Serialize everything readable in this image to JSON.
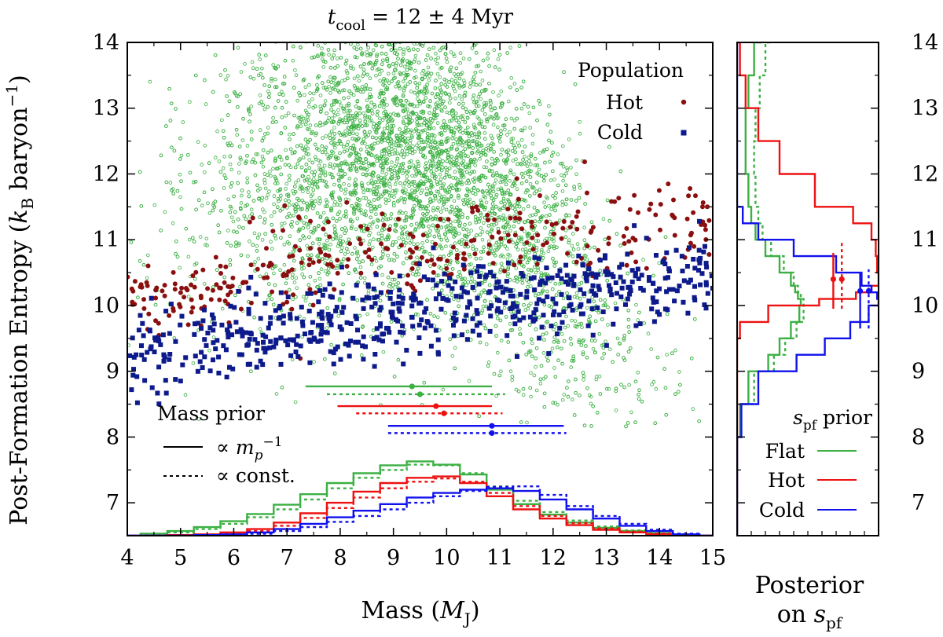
{
  "chart_data": [
    {
      "panel": "main",
      "type": "scatter",
      "title": "t_cool = 12 ± 4 Myr",
      "title_main": "t",
      "title_sub": "cool",
      "title_rest": " = 12 ± 4 Myr",
      "xlabel_pre": "Mass (",
      "xlabel_sym": "M",
      "xlabel_sub": "J",
      "xlabel_post": ")",
      "ylabel_pre": "Post-Formation Entropy (",
      "ylabel_sym": "k",
      "ylabel_sub": "B",
      "ylabel_post": " baryon",
      "ylabel_sup": "−1",
      "ylabel_close": ")",
      "xlim": [
        4,
        15
      ],
      "ylim": [
        6.5,
        14
      ],
      "xticks": [
        "4",
        "5",
        "6",
        "7",
        "8",
        "9",
        "10",
        "11",
        "12",
        "13",
        "14",
        "15"
      ],
      "yticks": [
        "7",
        "8",
        "9",
        "10",
        "11",
        "12",
        "13",
        "14"
      ],
      "legend_population": {
        "title": "Population",
        "entries": [
          {
            "label": "Hot",
            "color": "#8b0f0f",
            "marker": "circle"
          },
          {
            "label": "Cold",
            "color": "#0d1a8c",
            "marker": "square"
          }
        ]
      },
      "legend_mass_prior": {
        "title": "Mass prior",
        "entries": [
          {
            "label_pre": "∝ m",
            "label_sub": "p",
            "label_sup": "−1",
            "style": "solid"
          },
          {
            "label": "∝ const.",
            "style": "dotted"
          }
        ]
      },
      "series": [
        {
          "name": "Flat samples",
          "color": "#3cb043",
          "marker": "open-circle",
          "n_points": 6500,
          "trend": [
            [
              4,
              11.4
            ],
            [
              6,
              11.7
            ],
            [
              8,
              12.2
            ],
            [
              9.5,
              12.4
            ],
            [
              11,
              11.6
            ],
            [
              12,
              10.6
            ],
            [
              13,
              9.7
            ],
            [
              14,
              9.1
            ],
            [
              15,
              8.6
            ]
          ]
        },
        {
          "name": "Hot",
          "color": "#8b0f0f",
          "marker": "circle",
          "n_points": 320,
          "trend": [
            [
              4,
              10.0
            ],
            [
              6,
              10.35
            ],
            [
              8,
              10.65
            ],
            [
              10,
              10.85
            ],
            [
              12,
              11.0
            ],
            [
              15,
              11.2
            ]
          ]
        },
        {
          "name": "Cold",
          "color": "#0d1a8c",
          "marker": "square",
          "n_points": 600,
          "trend": [
            [
              4,
              9.2
            ],
            [
              6,
              9.55
            ],
            [
              8,
              9.75
            ],
            [
              10,
              10.0
            ],
            [
              12,
              10.15
            ],
            [
              15,
              10.4
            ]
          ]
        }
      ],
      "mass_errorbars": [
        {
          "name": "Flat",
          "color": "#3cb043",
          "prior": "m_p^-1",
          "center": 9.35,
          "low": 7.35,
          "high": 10.85,
          "y": 8.77
        },
        {
          "name": "Flat",
          "color": "#3cb043",
          "prior": "const",
          "center": 9.5,
          "low": 7.75,
          "high": 11.1,
          "y": 8.65
        },
        {
          "name": "Hot",
          "color": "#ee1111",
          "prior": "m_p^-1",
          "center": 9.8,
          "low": 7.95,
          "high": 10.85,
          "y": 8.47
        },
        {
          "name": "Hot",
          "color": "#ee1111",
          "prior": "const",
          "center": 9.95,
          "low": 8.3,
          "high": 11.05,
          "y": 8.36
        },
        {
          "name": "Cold",
          "color": "#1111ee",
          "prior": "m_p^-1",
          "center": 10.85,
          "low": 8.9,
          "high": 12.2,
          "y": 8.17
        },
        {
          "name": "Cold",
          "color": "#1111ee",
          "prior": "const",
          "center": 10.85,
          "low": 8.9,
          "high": 12.25,
          "y": 8.06
        }
      ],
      "mass_posteriors": {
        "x": [
          4,
          4.5,
          5,
          5.5,
          6,
          6.5,
          7,
          7.5,
          8,
          8.5,
          9,
          9.5,
          10,
          10.5,
          11,
          11.5,
          12,
          12.5,
          13,
          13.5,
          14,
          14.5,
          15
        ],
        "series": [
          {
            "name": "Flat m^-1",
            "color": "#3cb043",
            "style": "solid",
            "values": [
              6.5,
              6.53,
              6.57,
              6.63,
              6.72,
              6.83,
              6.97,
              7.13,
              7.3,
              7.45,
              7.57,
              7.63,
              7.58,
              7.43,
              7.2,
              6.98,
              6.82,
              6.7,
              6.62,
              6.57,
              6.54,
              6.52,
              6.5
            ]
          },
          {
            "name": "Flat const",
            "color": "#3cb043",
            "style": "dotted",
            "values": [
              6.5,
              6.52,
              6.55,
              6.6,
              6.68,
              6.78,
              6.9,
              7.05,
              7.22,
              7.38,
              7.5,
              7.58,
              7.57,
              7.45,
              7.25,
              7.03,
              6.86,
              6.73,
              6.64,
              6.58,
              6.54,
              6.52,
              6.5
            ]
          },
          {
            "name": "Hot m^-1",
            "color": "#ee1111",
            "style": "solid",
            "values": [
              6.5,
              6.5,
              6.51,
              6.52,
              6.55,
              6.6,
              6.7,
              6.84,
              7.0,
              7.17,
              7.3,
              7.38,
              7.4,
              7.3,
              7.1,
              6.9,
              6.76,
              6.66,
              6.59,
              6.55,
              6.52,
              6.51,
              6.5
            ]
          },
          {
            "name": "Hot const",
            "color": "#ee1111",
            "style": "dotted",
            "values": [
              6.5,
              6.5,
              6.5,
              6.51,
              6.53,
              6.57,
              6.65,
              6.77,
              6.92,
              7.08,
              7.22,
              7.32,
              7.37,
              7.32,
              7.15,
              6.95,
              6.8,
              6.69,
              6.61,
              6.56,
              6.53,
              6.51,
              6.5
            ]
          },
          {
            "name": "Cold m^-1",
            "color": "#1111ee",
            "style": "solid",
            "values": [
              6.5,
              6.5,
              6.5,
              6.51,
              6.52,
              6.55,
              6.6,
              6.68,
              6.78,
              6.88,
              6.98,
              7.08,
              7.15,
              7.2,
              7.22,
              7.18,
              7.05,
              6.9,
              6.76,
              6.65,
              6.57,
              6.52,
              6.5
            ]
          },
          {
            "name": "Cold const",
            "color": "#1111ee",
            "style": "dotted",
            "values": [
              6.5,
              6.5,
              6.5,
              6.5,
              6.51,
              6.53,
              6.57,
              6.63,
              6.71,
              6.8,
              6.9,
              7.0,
              7.1,
              7.18,
              7.24,
              7.25,
              7.12,
              6.95,
              6.8,
              6.68,
              6.59,
              6.53,
              6.5
            ]
          }
        ]
      }
    },
    {
      "panel": "side",
      "type": "line",
      "xlabel_line1": "Posterior",
      "xlabel_line2_pre": "on ",
      "xlabel_sym": "s",
      "xlabel_sub": "pf",
      "ylim": [
        6.5,
        14
      ],
      "yticks": [
        "7",
        "8",
        "9",
        "10",
        "11",
        "12",
        "13",
        "14"
      ],
      "legend": {
        "title_sym": "s",
        "title_sub": "pf",
        "title_rest": " prior",
        "entries": [
          {
            "label": "Flat",
            "color": "#3cb043"
          },
          {
            "label": "Hot",
            "color": "#ee1111"
          },
          {
            "label": "Cold",
            "color": "#1111ee"
          }
        ]
      },
      "entropy_posteriors": {
        "y": [
          6.5,
          7,
          7.5,
          8,
          8.5,
          9,
          9.25,
          9.5,
          9.75,
          10,
          10.1,
          10.2,
          10.3,
          10.5,
          10.75,
          11,
          11.25,
          11.5,
          12,
          12.5,
          13,
          13.5,
          14
        ],
        "series": [
          {
            "name": "Flat",
            "color": "#3cb043",
            "style": "solid",
            "values": [
              0,
              0,
              0,
              0.02,
              0.08,
              0.22,
              0.3,
              0.38,
              0.44,
              0.45,
              0.43,
              0.41,
              0.38,
              0.3,
              0.2,
              0.13,
              0.1,
              0.08,
              0.06,
              0.06,
              0.08,
              0.12,
              0.17
            ]
          },
          {
            "name": "Flat const",
            "color": "#3cb043",
            "style": "dotted",
            "values": [
              0,
              0,
              0,
              0.03,
              0.12,
              0.26,
              0.34,
              0.42,
              0.47,
              0.47,
              0.45,
              0.43,
              0.4,
              0.33,
              0.24,
              0.18,
              0.15,
              0.13,
              0.12,
              0.13,
              0.16,
              0.2,
              0.25
            ]
          },
          {
            "name": "Hot",
            "color": "#ee1111",
            "style": "solid",
            "values": [
              0,
              0,
              0,
              0,
              0,
              0,
              0,
              0.02,
              0.22,
              0.58,
              0.84,
              0.95,
              1.0,
              0.99,
              0.98,
              0.95,
              0.82,
              0.55,
              0.3,
              0.15,
              0.06,
              0.02,
              0
            ]
          },
          {
            "name": "Cold",
            "color": "#1111ee",
            "style": "solid",
            "values": [
              0,
              0,
              0,
              0.03,
              0.15,
              0.42,
              0.62,
              0.8,
              0.93,
              1.0,
              0.99,
              0.95,
              0.88,
              0.7,
              0.4,
              0.15,
              0.04,
              0,
              0,
              0,
              0,
              0,
              0
            ]
          }
        ]
      },
      "entropy_errorbars": [
        {
          "name": "Hot",
          "color": "#ee1111",
          "prior": "m_p^-1",
          "center": 10.4,
          "low": 9.95,
          "high": 10.8
        },
        {
          "name": "Hot",
          "color": "#ee1111",
          "prior": "const",
          "center": 10.4,
          "low": 9.95,
          "high": 10.95
        },
        {
          "name": "Cold",
          "color": "#1111ee",
          "prior": "m_p^-1",
          "center": 10.22,
          "low": 9.65,
          "high": 10.5
        },
        {
          "name": "Cold",
          "color": "#1111ee",
          "prior": "const",
          "center": 10.22,
          "low": 9.65,
          "high": 10.55
        }
      ]
    }
  ]
}
